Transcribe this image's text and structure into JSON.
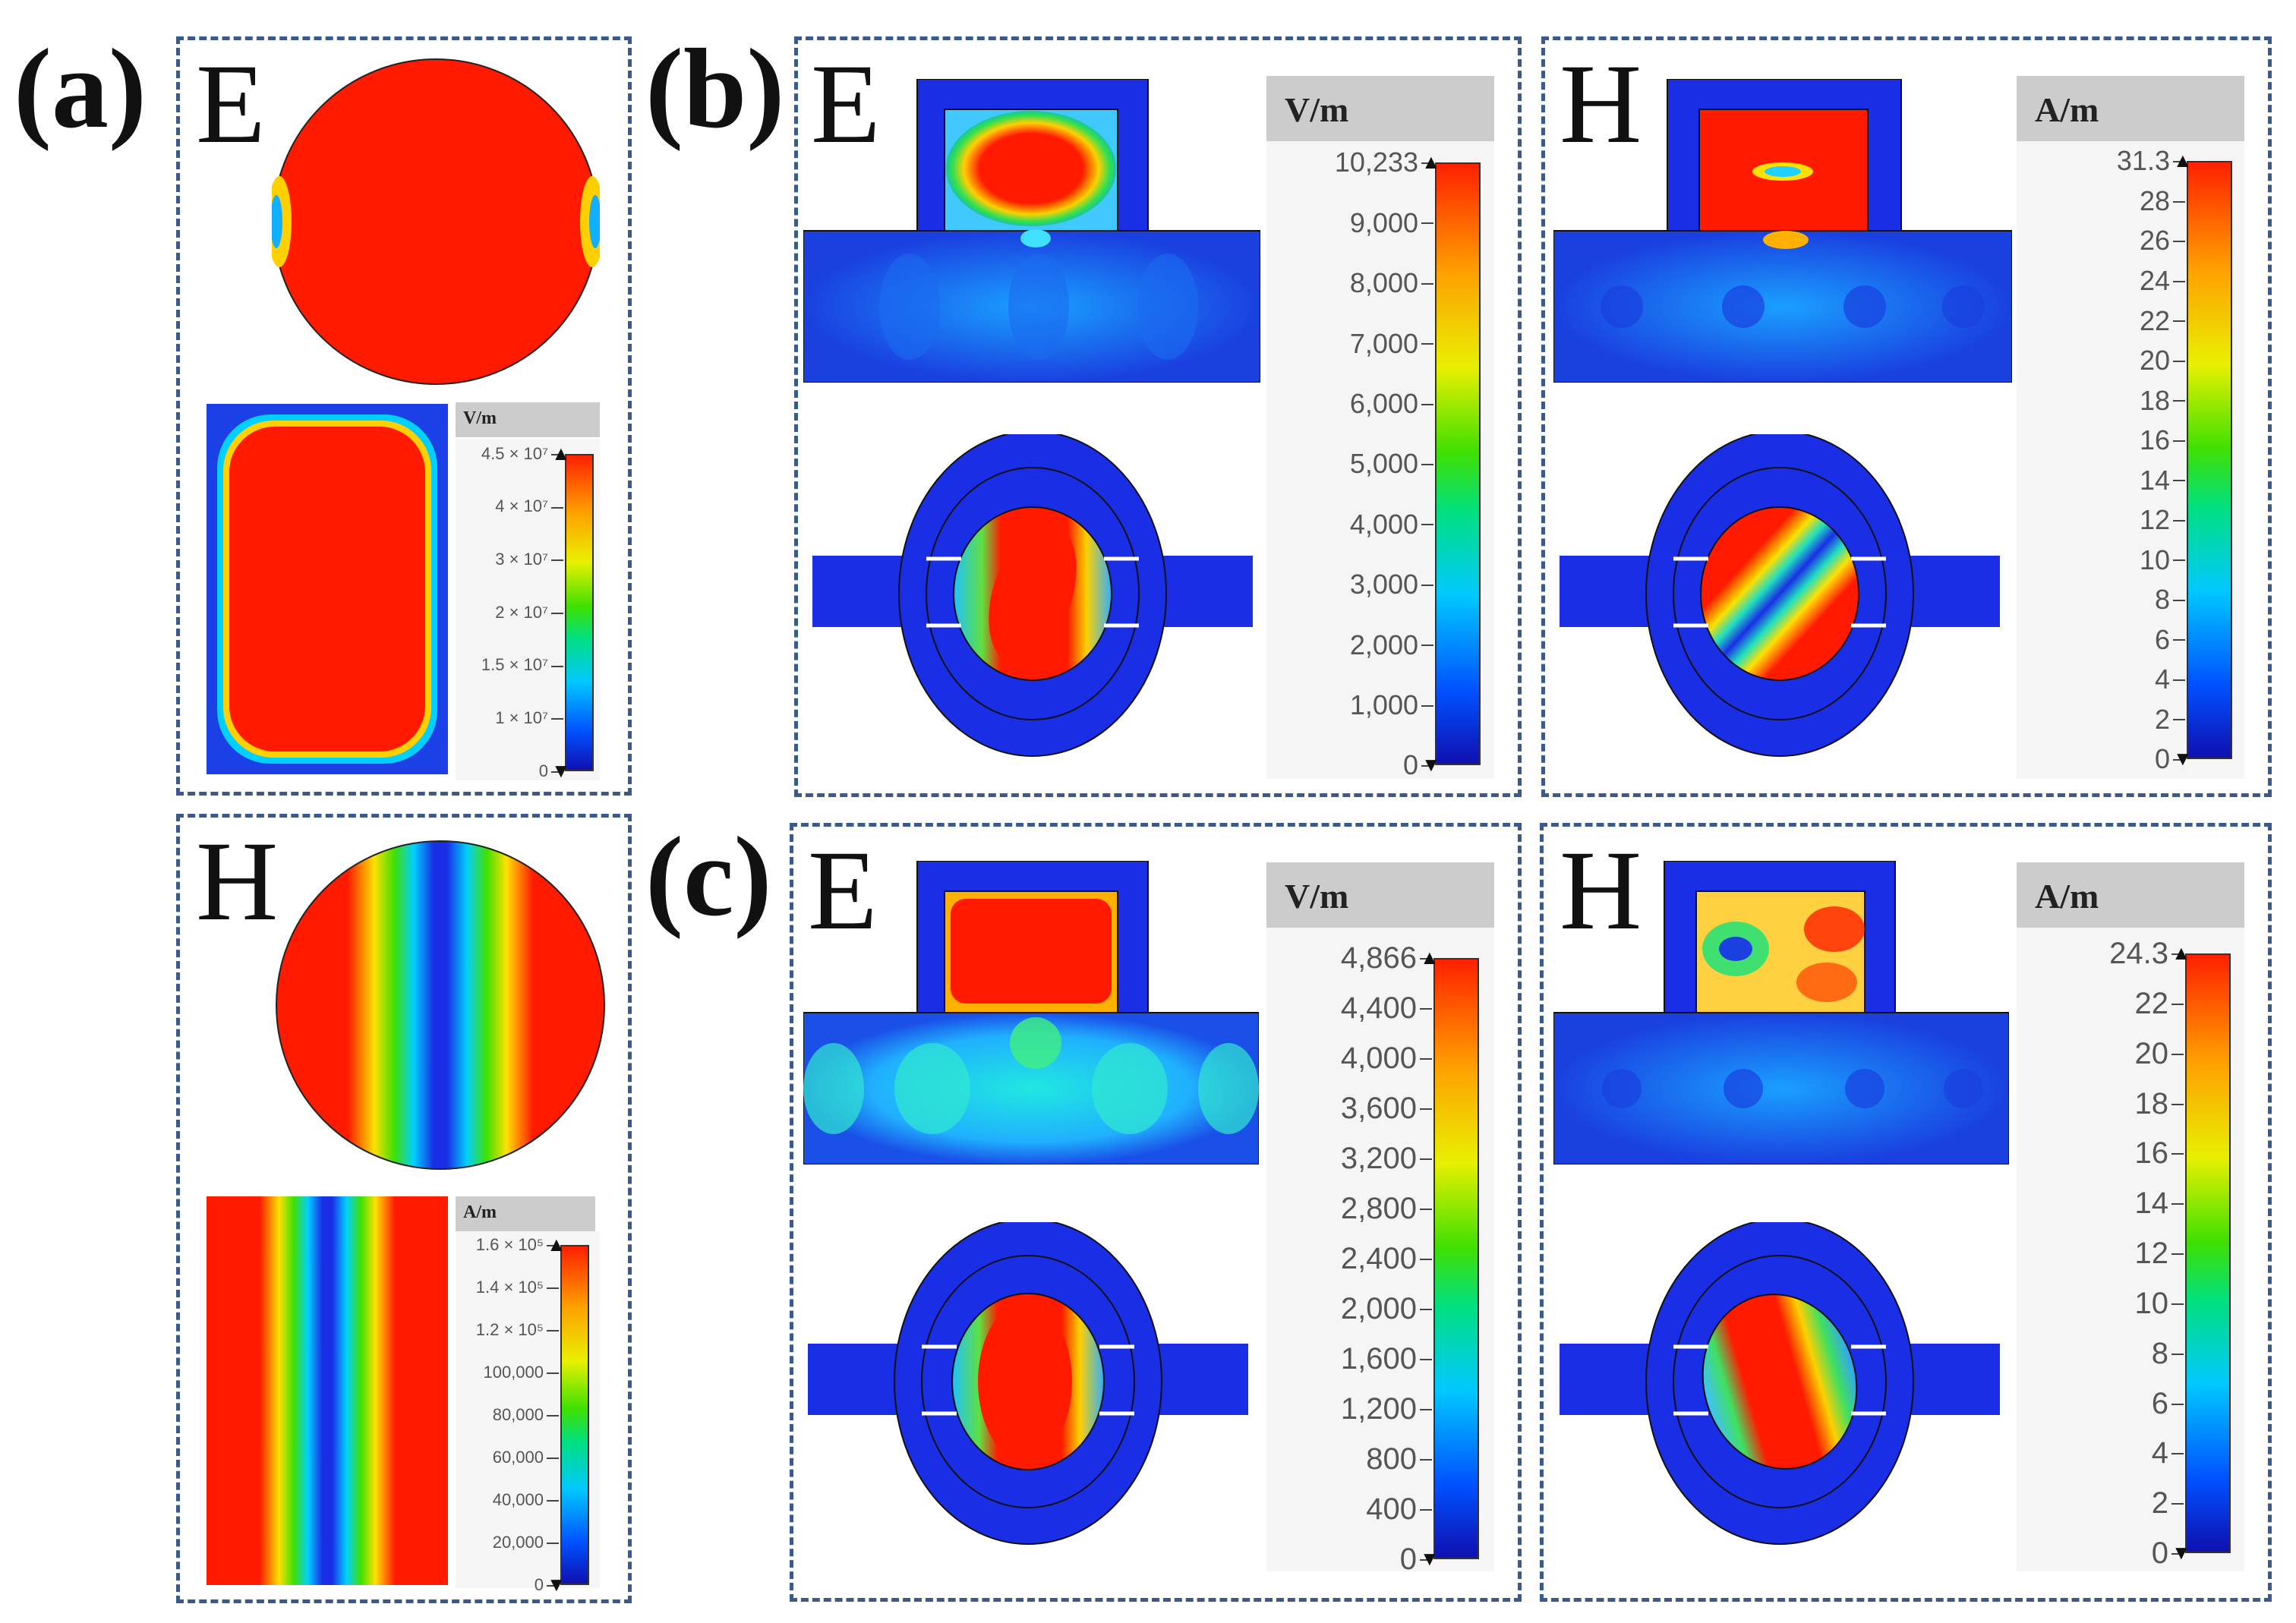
{
  "panels": {
    "a": {
      "label": "(a)",
      "field_e": "E",
      "field_h": "H",
      "cbar_e": {
        "unit": "V/m",
        "ticks": [
          "4.5 × 10⁷",
          "4 × 10⁷",
          "3 × 10⁷",
          "2 × 10⁷",
          "1.5 × 10⁷",
          "1 × 10⁷",
          "0"
        ]
      },
      "cbar_h": {
        "unit": "A/m",
        "ticks": [
          "1.6 × 10⁵",
          "1.4 × 10⁵",
          "1.2 × 10⁵",
          "100,000",
          "80,000",
          "60,000",
          "40,000",
          "20,000",
          "0"
        ]
      }
    },
    "b": {
      "label": "(b)",
      "field_e": "E",
      "field_h": "H",
      "cbar_e": {
        "unit": "V/m",
        "ticks": [
          "10,233",
          "9,000",
          "8,000",
          "7,000",
          "6,000",
          "5,000",
          "4,000",
          "3,000",
          "2,000",
          "1,000",
          "0"
        ]
      },
      "cbar_h": {
        "unit": "A/m",
        "ticks": [
          "31.3",
          "28",
          "26",
          "24",
          "22",
          "20",
          "18",
          "16",
          "14",
          "12",
          "10",
          "8",
          "6",
          "4",
          "2",
          "0"
        ]
      }
    },
    "c": {
      "label": "(c)",
      "field_e": "E",
      "field_h": "H",
      "cbar_e": {
        "unit": "V/m",
        "ticks": [
          "4,866",
          "4,400",
          "4,000",
          "3,600",
          "3,200",
          "2,800",
          "2,400",
          "2,000",
          "1,600",
          "1,200",
          "800",
          "400",
          "0"
        ]
      },
      "cbar_h": {
        "unit": "A/m",
        "ticks": [
          "24.3",
          "22",
          "20",
          "18",
          "16",
          "14",
          "12",
          "10",
          "8",
          "6",
          "4",
          "2",
          "0"
        ]
      }
    }
  },
  "colors": {
    "red": "#ff1a00",
    "blue": "#1a2ee6",
    "dashed_border": "#3b5a8c"
  }
}
